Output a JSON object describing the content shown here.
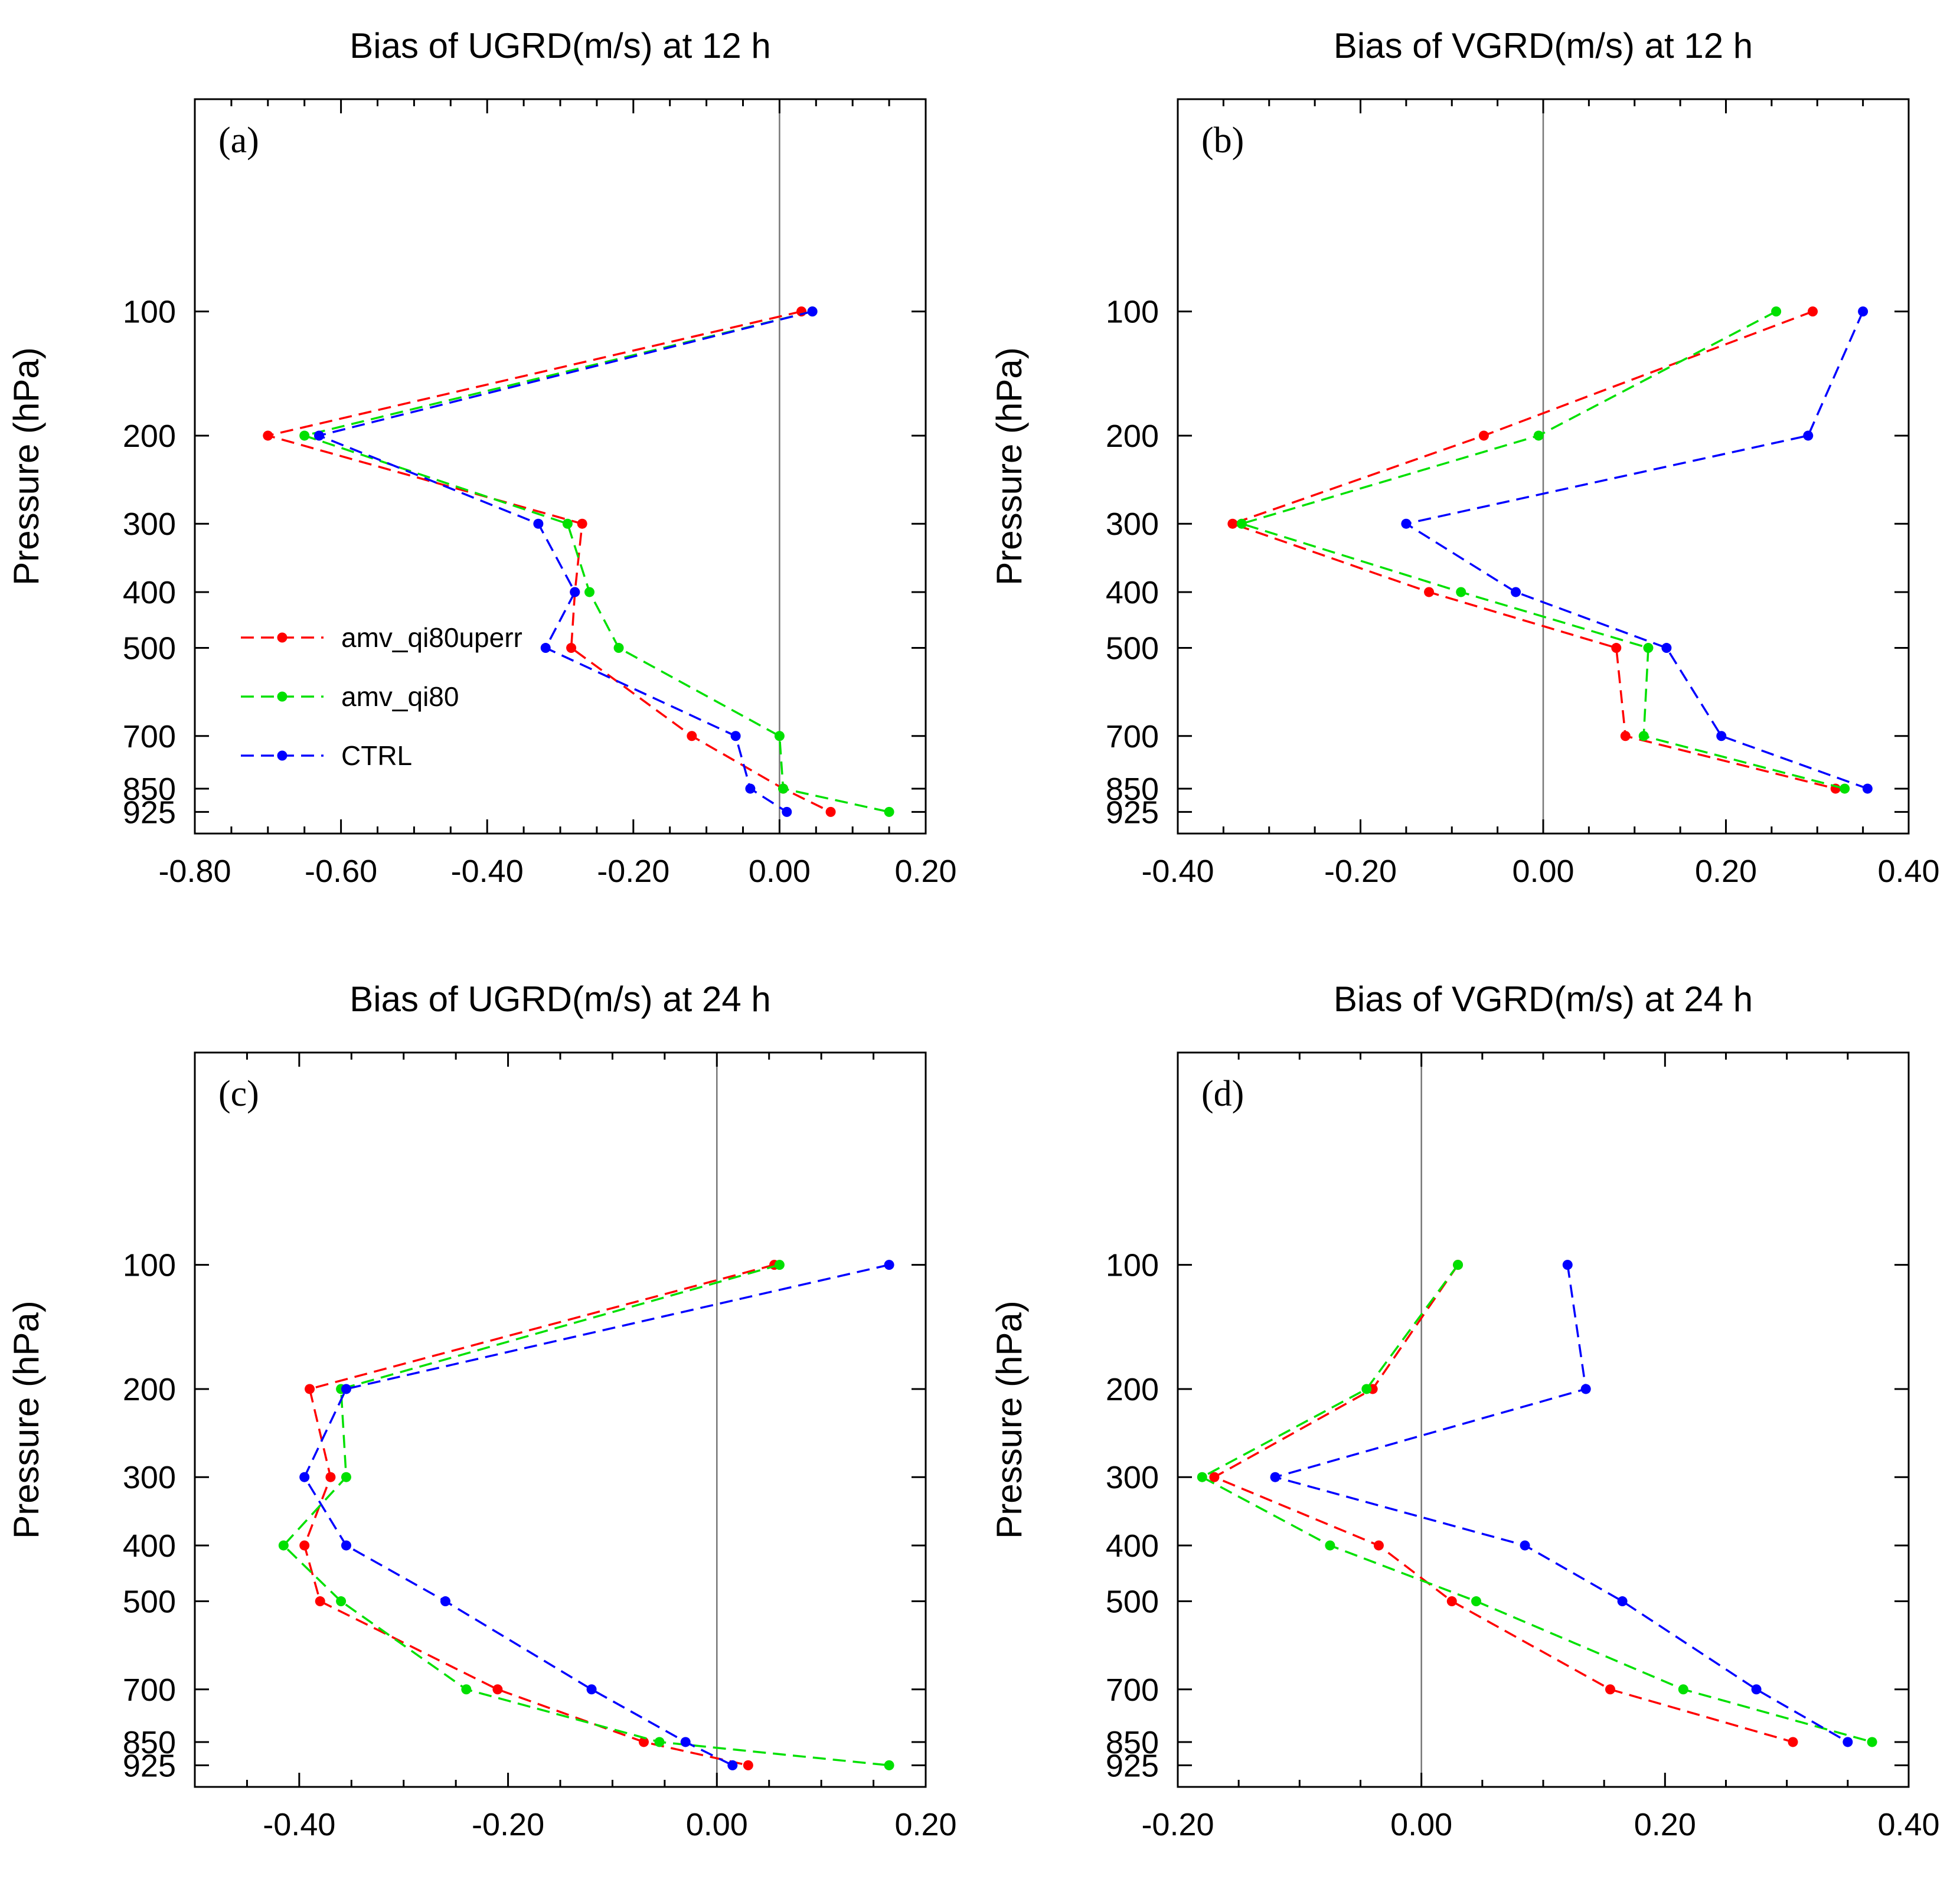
{
  "chart_data": [
    {
      "type": "line",
      "panel_label": "(a)",
      "title": "Bias of UGRD(m/s) at 12 h",
      "xlabel": "",
      "ylabel": "Pressure (hPa)",
      "xlim": [
        -0.8,
        0.2
      ],
      "xticks": [
        -0.8,
        -0.6,
        -0.4,
        -0.2,
        0.0,
        0.2
      ],
      "xtick_labels": [
        "-0.80",
        "-0.60",
        "-0.40",
        "-0.20",
        "0.00",
        "0.20"
      ],
      "ylim": [
        1000,
        0
      ],
      "yscale": "log(p + 100)",
      "yticks": [
        100,
        200,
        300,
        400,
        500,
        700,
        850,
        925
      ],
      "ytick_labels": [
        "100",
        "200",
        "300",
        "400",
        "500",
        "700",
        "850",
        "925"
      ],
      "legend": true,
      "legend_position": "lower-left",
      "series": [
        {
          "name": "amv_qi80uperr",
          "color": "#ff0000",
          "points": [
            [
              0.03,
              100
            ],
            [
              -0.7,
              200
            ],
            [
              -0.27,
              300
            ],
            [
              -0.28,
              400
            ],
            [
              -0.285,
              500
            ],
            [
              -0.12,
              700
            ],
            [
              0.005,
              850
            ],
            [
              0.07,
              925
            ]
          ]
        },
        {
          "name": "amv_qi80",
          "color": "#00e000",
          "points": [
            [
              0.045,
              100
            ],
            [
              -0.65,
              200
            ],
            [
              -0.29,
              300
            ],
            [
              -0.26,
              400
            ],
            [
              -0.22,
              500
            ],
            [
              0.0,
              700
            ],
            [
              0.005,
              850
            ],
            [
              0.15,
              925
            ]
          ]
        },
        {
          "name": "CTRL",
          "color": "#0000ff",
          "points": [
            [
              0.045,
              100
            ],
            [
              -0.63,
              200
            ],
            [
              -0.33,
              300
            ],
            [
              -0.28,
              400
            ],
            [
              -0.32,
              500
            ],
            [
              -0.06,
              700
            ],
            [
              -0.04,
              850
            ],
            [
              0.01,
              925
            ]
          ]
        }
      ]
    },
    {
      "type": "line",
      "panel_label": "(b)",
      "title": "Bias of VGRD(m/s) at 12 h",
      "xlabel": "",
      "ylabel": "Pressure (hPa)",
      "xlim": [
        -0.4,
        0.4
      ],
      "xticks": [
        -0.4,
        -0.2,
        0.0,
        0.2,
        0.4
      ],
      "xtick_labels": [
        "-0.40",
        "-0.20",
        "0.00",
        "0.20",
        "0.40"
      ],
      "ylim": [
        1000,
        0
      ],
      "yscale": "log(p + 100)",
      "yticks": [
        100,
        200,
        300,
        400,
        500,
        700,
        850,
        925
      ],
      "ytick_labels": [
        "100",
        "200",
        "300",
        "400",
        "500",
        "700",
        "850",
        "925"
      ],
      "legend": false,
      "series": [
        {
          "name": "amv_qi80uperr",
          "color": "#ff0000",
          "points": [
            [
              0.295,
              100
            ],
            [
              -0.065,
              200
            ],
            [
              -0.34,
              300
            ],
            [
              -0.125,
              400
            ],
            [
              0.08,
              500
            ],
            [
              0.09,
              700
            ],
            [
              0.32,
              850
            ]
          ]
        },
        {
          "name": "amv_qi80",
          "color": "#00e000",
          "points": [
            [
              0.255,
              100
            ],
            [
              -0.005,
              200
            ],
            [
              -0.33,
              300
            ],
            [
              -0.09,
              400
            ],
            [
              0.115,
              500
            ],
            [
              0.11,
              700
            ],
            [
              0.33,
              850
            ]
          ]
        },
        {
          "name": "CTRL",
          "color": "#0000ff",
          "points": [
            [
              0.35,
              100
            ],
            [
              0.29,
              200
            ],
            [
              -0.15,
              300
            ],
            [
              -0.03,
              400
            ],
            [
              0.135,
              500
            ],
            [
              0.195,
              700
            ],
            [
              0.355,
              850
            ]
          ]
        }
      ]
    },
    {
      "type": "line",
      "panel_label": "(c)",
      "title": "Bias of UGRD(m/s) at 24 h",
      "xlabel": "",
      "ylabel": "Pressure (hPa)",
      "xlim": [
        -0.5,
        0.2
      ],
      "xticks": [
        -0.4,
        -0.2,
        0.0,
        0.2
      ],
      "xtick_labels": [
        "-0.40",
        "-0.20",
        "0.00",
        "0.20"
      ],
      "ylim": [
        1000,
        0
      ],
      "yscale": "log(p + 100)",
      "yticks": [
        100,
        200,
        300,
        400,
        500,
        700,
        850,
        925
      ],
      "ytick_labels": [
        "100",
        "200",
        "300",
        "400",
        "500",
        "700",
        "850",
        "925"
      ],
      "legend": false,
      "series": [
        {
          "name": "amv_qi80uperr",
          "color": "#ff0000",
          "points": [
            [
              0.055,
              100
            ],
            [
              -0.39,
              200
            ],
            [
              -0.37,
              300
            ],
            [
              -0.395,
              400
            ],
            [
              -0.38,
              500
            ],
            [
              -0.21,
              700
            ],
            [
              -0.07,
              850
            ],
            [
              0.03,
              925
            ]
          ]
        },
        {
          "name": "amv_qi80",
          "color": "#00e000",
          "points": [
            [
              0.06,
              100
            ],
            [
              -0.36,
              200
            ],
            [
              -0.355,
              300
            ],
            [
              -0.415,
              400
            ],
            [
              -0.36,
              500
            ],
            [
              -0.24,
              700
            ],
            [
              -0.055,
              850
            ],
            [
              0.165,
              925
            ]
          ]
        },
        {
          "name": "CTRL",
          "color": "#0000ff",
          "points": [
            [
              0.165,
              100
            ],
            [
              -0.355,
              200
            ],
            [
              -0.395,
              300
            ],
            [
              -0.355,
              400
            ],
            [
              -0.26,
              500
            ],
            [
              -0.12,
              700
            ],
            [
              -0.03,
              850
            ],
            [
              0.015,
              925
            ]
          ]
        }
      ]
    },
    {
      "type": "line",
      "panel_label": "(d)",
      "title": "Bias of VGRD(m/s) at 24 h",
      "xlabel": "",
      "ylabel": "Pressure (hPa)",
      "xlim": [
        -0.2,
        0.4
      ],
      "xticks": [
        -0.2,
        0.0,
        0.2,
        0.4
      ],
      "xtick_labels": [
        "-0.20",
        "0.00",
        "0.20",
        "0.40"
      ],
      "ylim": [
        1000,
        0
      ],
      "yscale": "log(p + 100)",
      "yticks": [
        100,
        200,
        300,
        400,
        500,
        700,
        850,
        925
      ],
      "ytick_labels": [
        "100",
        "200",
        "300",
        "400",
        "500",
        "700",
        "850",
        "925"
      ],
      "legend": false,
      "series": [
        {
          "name": "amv_qi80uperr",
          "color": "#ff0000",
          "points": [
            [
              0.03,
              100
            ],
            [
              -0.04,
              200
            ],
            [
              -0.17,
              300
            ],
            [
              -0.035,
              400
            ],
            [
              0.025,
              500
            ],
            [
              0.155,
              700
            ],
            [
              0.305,
              850
            ]
          ]
        },
        {
          "name": "amv_qi80",
          "color": "#00e000",
          "points": [
            [
              0.03,
              100
            ],
            [
              -0.045,
              200
            ],
            [
              -0.18,
              300
            ],
            [
              -0.075,
              400
            ],
            [
              0.045,
              500
            ],
            [
              0.215,
              700
            ],
            [
              0.37,
              850
            ]
          ]
        },
        {
          "name": "CTRL",
          "color": "#0000ff",
          "points": [
            [
              0.12,
              100
            ],
            [
              0.135,
              200
            ],
            [
              -0.12,
              300
            ],
            [
              0.085,
              400
            ],
            [
              0.165,
              500
            ],
            [
              0.275,
              700
            ],
            [
              0.35,
              850
            ]
          ]
        }
      ]
    }
  ]
}
